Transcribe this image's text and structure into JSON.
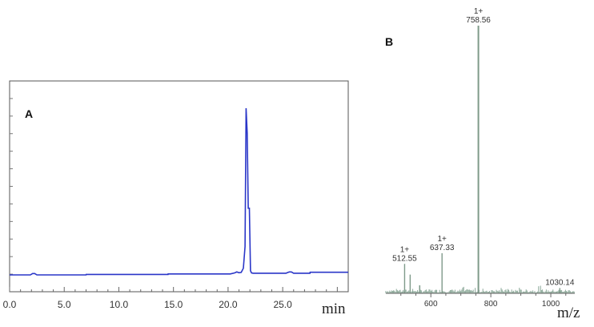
{
  "chart_data": [
    {
      "type": "line",
      "panel_label": "A",
      "xlabel": "min",
      "ylabel": "",
      "xlim": [
        0,
        31
      ],
      "ylim": [
        0,
        100
      ],
      "xticks": [
        "0.0",
        "5.0",
        "10.0",
        "15.0",
        "20.0",
        "25.0"
      ],
      "grid": false,
      "color": "#2a36c8",
      "series": [
        {
          "x": [
            0,
            1.9,
            2.1,
            2.3,
            2.5,
            7,
            7.01,
            14.5,
            14.51,
            20.2,
            20.6,
            20.8,
            21.0,
            21.2,
            21.4,
            21.55,
            21.65,
            21.75,
            21.85,
            21.95,
            22.05,
            22.15,
            22.3,
            25.3,
            25.6,
            25.8,
            26.0,
            27.5,
            27.51,
            31
          ],
          "y": [
            0,
            0,
            0.8,
            0.8,
            0,
            0,
            0.3,
            0.3,
            0.6,
            0.6,
            1.2,
            1.8,
            1.3,
            1.5,
            4,
            17,
            100,
            85,
            40,
            40,
            2.5,
            1.2,
            1.0,
            1.0,
            1.8,
            1.8,
            1.0,
            1.0,
            1.6,
            1.6
          ]
        }
      ]
    },
    {
      "type": "bar",
      "panel_label": "B",
      "xlabel": "m/z",
      "ylabel": "",
      "xlim": [
        450,
        1080
      ],
      "ylim": [
        0,
        100
      ],
      "xticks": [
        "600",
        "800",
        "1000"
      ],
      "grid": false,
      "color": "#7f9a8a",
      "peaks": [
        {
          "mz": 512.55,
          "intensity": 11,
          "label": "512.55",
          "charge": "1+"
        },
        {
          "mz": 531,
          "intensity": 7,
          "label": "",
          "charge": ""
        },
        {
          "mz": 563,
          "intensity": 3,
          "label": "",
          "charge": ""
        },
        {
          "mz": 637.33,
          "intensity": 15,
          "label": "637.33",
          "charge": "1+"
        },
        {
          "mz": 758.56,
          "intensity": 100,
          "label": "758.56",
          "charge": "1+"
        },
        {
          "mz": 1030.14,
          "intensity": 2,
          "label": "1030.14",
          "charge": ""
        }
      ]
    }
  ]
}
